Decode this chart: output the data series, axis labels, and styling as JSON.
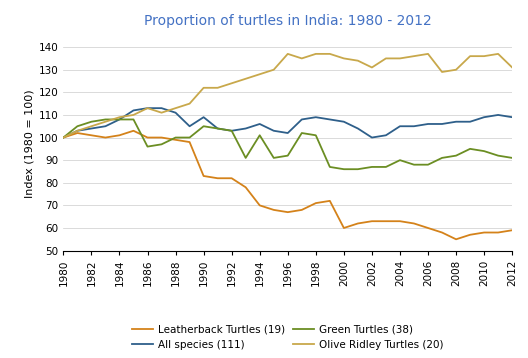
{
  "title": "Proportion of turtles in India: 1980 - 2012",
  "ylabel": "Index (1980 = 100)",
  "years": [
    1980,
    1981,
    1982,
    1983,
    1984,
    1985,
    1986,
    1987,
    1988,
    1989,
    1990,
    1991,
    1992,
    1993,
    1994,
    1995,
    1996,
    1997,
    1998,
    1999,
    2000,
    2001,
    2002,
    2003,
    2004,
    2005,
    2006,
    2007,
    2008,
    2009,
    2010,
    2011,
    2012
  ],
  "all_species": [
    100,
    103,
    104,
    105,
    108,
    112,
    113,
    113,
    111,
    105,
    109,
    104,
    103,
    104,
    106,
    103,
    102,
    108,
    109,
    108,
    107,
    104,
    100,
    101,
    105,
    105,
    106,
    106,
    107,
    107,
    109,
    110,
    109
  ],
  "leatherback": [
    100,
    102,
    101,
    100,
    101,
    103,
    100,
    100,
    99,
    98,
    83,
    82,
    82,
    78,
    70,
    68,
    67,
    68,
    71,
    72,
    60,
    62,
    63,
    63,
    63,
    62,
    60,
    58,
    55,
    57,
    58,
    58,
    59
  ],
  "green": [
    100,
    105,
    107,
    108,
    108,
    108,
    96,
    97,
    100,
    100,
    105,
    104,
    103,
    91,
    101,
    91,
    92,
    102,
    101,
    87,
    86,
    86,
    87,
    87,
    90,
    88,
    88,
    91,
    92,
    95,
    94,
    92,
    91
  ],
  "olive_ridley": [
    100,
    103,
    105,
    107,
    109,
    110,
    113,
    111,
    113,
    115,
    122,
    122,
    124,
    126,
    128,
    130,
    137,
    135,
    137,
    137,
    135,
    134,
    131,
    135,
    135,
    136,
    137,
    129,
    130,
    136,
    136,
    137,
    131
  ],
  "colors": {
    "all_species": "#2E5F8A",
    "leatherback": "#D4821A",
    "green": "#6B8E23",
    "olive_ridley": "#C8A84B"
  },
  "legend": {
    "leatherback": "Leatherback Turtles (19)",
    "all_species": "All species (111)",
    "green": "Green Turtles (38)",
    "olive_ridley": "Olive Ridley Turtles (20)"
  },
  "ylim": [
    50,
    145
  ],
  "yticks": [
    50,
    60,
    70,
    80,
    90,
    100,
    110,
    120,
    130,
    140
  ],
  "xticks": [
    1980,
    1982,
    1984,
    1986,
    1988,
    1990,
    1992,
    1994,
    1996,
    1998,
    2000,
    2002,
    2004,
    2006,
    2008,
    2010,
    2012
  ],
  "background_color": "#ffffff",
  "title_color": "#4472C4",
  "title_fontsize": 10,
  "axis_fontsize": 8,
  "tick_fontsize": 7.5,
  "legend_fontsize": 7.5,
  "linewidth": 1.3
}
